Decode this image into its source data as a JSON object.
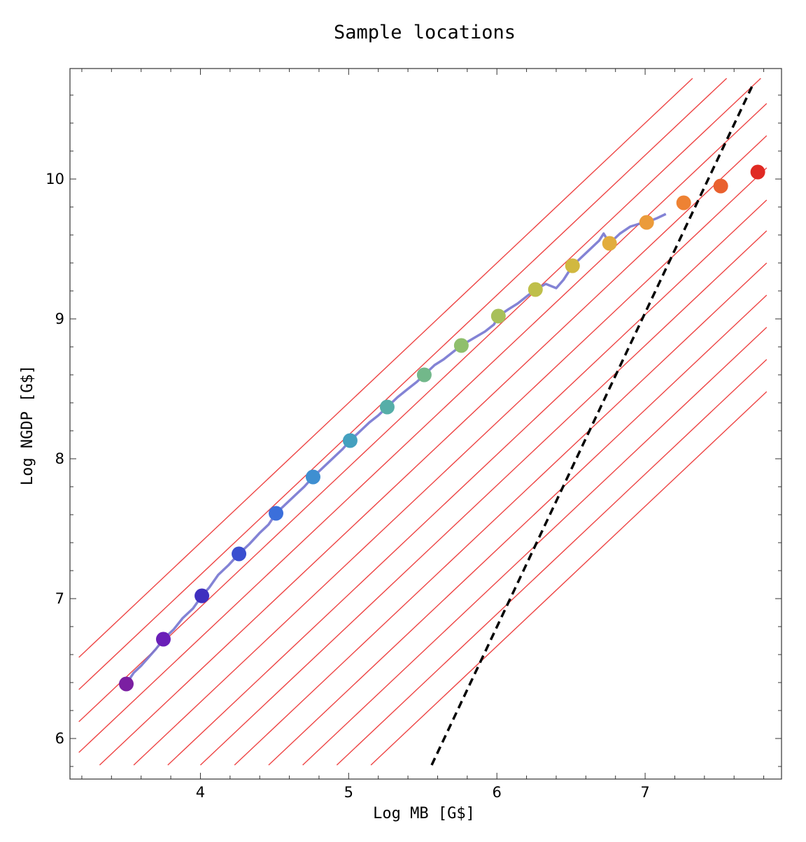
{
  "chart_data": {
    "type": "scatter",
    "title": "Sample locations",
    "xlabel": "Log MB [G$]",
    "ylabel": "Log NGDP [G$]",
    "xlim": [
      3.12,
      7.92
    ],
    "ylim": [
      5.71,
      10.79
    ],
    "xticks": [
      {
        "value": 4,
        "label": "4"
      },
      {
        "value": 5,
        "label": "5"
      },
      {
        "value": 6,
        "label": "6"
      },
      {
        "value": 7,
        "label": "7"
      }
    ],
    "yticks": [
      {
        "value": 6,
        "label": "6"
      },
      {
        "value": 7,
        "label": "7"
      },
      {
        "value": 8,
        "label": "8"
      },
      {
        "value": 9,
        "label": "9"
      },
      {
        "value": 10,
        "label": "10"
      }
    ],
    "series": [
      {
        "name": "sample points",
        "points": [
          {
            "x": 3.5,
            "y": 6.39,
            "color": "#7b1fa2"
          },
          {
            "x": 3.75,
            "y": 6.71,
            "color": "#6a1fb8"
          },
          {
            "x": 4.01,
            "y": 7.02,
            "color": "#3f2fbf"
          },
          {
            "x": 4.26,
            "y": 7.32,
            "color": "#3a4fd0"
          },
          {
            "x": 4.51,
            "y": 7.61,
            "color": "#3b6fdb"
          },
          {
            "x": 4.76,
            "y": 7.87,
            "color": "#3f8fd1"
          },
          {
            "x": 5.01,
            "y": 8.13,
            "color": "#44a0bf"
          },
          {
            "x": 5.26,
            "y": 8.37,
            "color": "#56aea8"
          },
          {
            "x": 5.51,
            "y": 8.6,
            "color": "#72b88a"
          },
          {
            "x": 5.76,
            "y": 8.81,
            "color": "#8fbf6c"
          },
          {
            "x": 6.01,
            "y": 9.02,
            "color": "#a8c05a"
          },
          {
            "x": 6.26,
            "y": 9.21,
            "color": "#bfbf4a"
          },
          {
            "x": 6.51,
            "y": 9.38,
            "color": "#d1b840"
          },
          {
            "x": 6.76,
            "y": 9.54,
            "color": "#e2ad3d"
          },
          {
            "x": 7.01,
            "y": 9.69,
            "color": "#eb9b3a"
          },
          {
            "x": 7.26,
            "y": 9.83,
            "color": "#ee8233"
          },
          {
            "x": 7.51,
            "y": 9.95,
            "color": "#e9602e"
          },
          {
            "x": 7.76,
            "y": 10.05,
            "color": "#e02a23"
          }
        ]
      },
      {
        "name": "data path",
        "type": "line",
        "color": "#7575d0",
        "points": [
          [
            3.5,
            6.39
          ],
          [
            3.55,
            6.47
          ],
          [
            3.6,
            6.52
          ],
          [
            3.65,
            6.58
          ],
          [
            3.7,
            6.64
          ],
          [
            3.75,
            6.71
          ],
          [
            3.82,
            6.78
          ],
          [
            3.88,
            6.86
          ],
          [
            3.95,
            6.93
          ],
          [
            4.01,
            7.02
          ],
          [
            4.06,
            7.08
          ],
          [
            4.12,
            7.17
          ],
          [
            4.19,
            7.24
          ],
          [
            4.26,
            7.32
          ],
          [
            4.33,
            7.39
          ],
          [
            4.4,
            7.47
          ],
          [
            4.46,
            7.53
          ],
          [
            4.51,
            7.61
          ],
          [
            4.58,
            7.68
          ],
          [
            4.64,
            7.74
          ],
          [
            4.7,
            7.8
          ],
          [
            4.76,
            7.87
          ],
          [
            4.83,
            7.94
          ],
          [
            4.9,
            8.01
          ],
          [
            4.96,
            8.07
          ],
          [
            5.01,
            8.13
          ],
          [
            5.08,
            8.2
          ],
          [
            5.14,
            8.26
          ],
          [
            5.2,
            8.31
          ],
          [
            5.26,
            8.37
          ],
          [
            5.33,
            8.44
          ],
          [
            5.4,
            8.5
          ],
          [
            5.46,
            8.55
          ],
          [
            5.51,
            8.6
          ],
          [
            5.58,
            8.67
          ],
          [
            5.64,
            8.71
          ],
          [
            5.7,
            8.76
          ],
          [
            5.76,
            8.81
          ],
          [
            5.84,
            8.86
          ],
          [
            5.92,
            8.91
          ],
          [
            5.98,
            8.96
          ],
          [
            6.01,
            9.02
          ],
          [
            6.08,
            9.07
          ],
          [
            6.14,
            9.11
          ],
          [
            6.2,
            9.16
          ],
          [
            6.26,
            9.21
          ],
          [
            6.33,
            9.25
          ],
          [
            6.4,
            9.22
          ],
          [
            6.45,
            9.28
          ],
          [
            6.51,
            9.38
          ],
          [
            6.57,
            9.44
          ],
          [
            6.63,
            9.5
          ],
          [
            6.69,
            9.56
          ],
          [
            6.72,
            9.61
          ],
          [
            6.76,
            9.54
          ],
          [
            6.83,
            9.61
          ],
          [
            6.9,
            9.66
          ],
          [
            6.96,
            9.68
          ],
          [
            7.01,
            9.69
          ],
          [
            7.08,
            9.72
          ],
          [
            7.14,
            9.75
          ]
        ]
      }
    ],
    "reference_lines": {
      "type": "line",
      "color": "#ee4444",
      "slope": 1.0,
      "intercepts": [
        3.4,
        3.17,
        2.94,
        2.72,
        2.49,
        2.26,
        2.03,
        1.81,
        1.58,
        1.35,
        1.12,
        0.89,
        0.66
      ]
    },
    "dashed_line": {
      "type": "line",
      "style": "dashed",
      "color": "#000000",
      "points": [
        [
          5.56,
          5.81
        ],
        [
          7.72,
          10.66
        ]
      ]
    }
  }
}
